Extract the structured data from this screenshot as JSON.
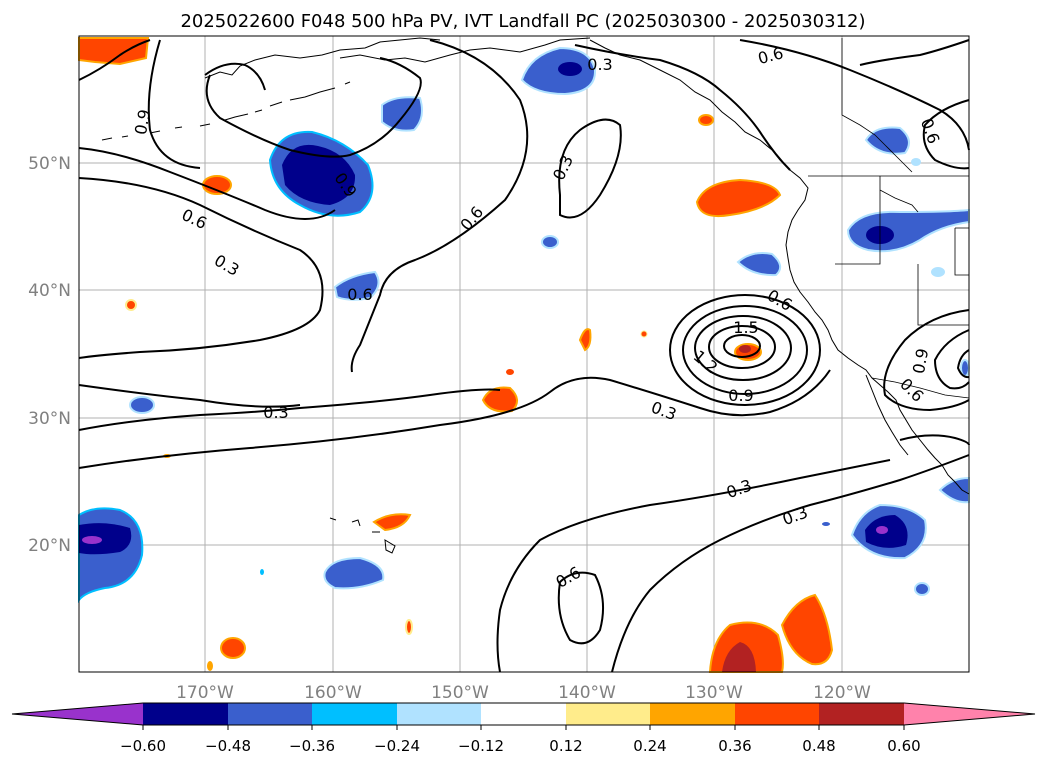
{
  "title": "2025022600 F048 500 hPa PV, IVT Landfall PC (2025030300 - 2025030312)",
  "axes": {
    "lat_labels": [
      "50°N",
      "40°N",
      "30°N",
      "20°N"
    ],
    "lon_labels": [
      "170°W",
      "160°W",
      "150°W",
      "140°W",
      "130°W",
      "120°W"
    ]
  },
  "colorbar": {
    "tick_labels": [
      "−0.60",
      "−0.48",
      "−0.36",
      "−0.24",
      "−0.12",
      "0.12",
      "0.24",
      "0.36",
      "0.48",
      "0.60"
    ],
    "colors": [
      "#9932CC",
      "#00008B",
      "#3A5FCD",
      "#00BFFF",
      "#B0E2FF",
      "#FFFFFF",
      "#FFEC8B",
      "#FFA500",
      "#FF4500",
      "#B22222",
      "#FF82AB"
    ]
  },
  "contour_labels": [
    "0.9",
    "0.3",
    "0.6",
    "0.3",
    "0.6",
    "0.9",
    "0.3",
    "0.6",
    "0.6",
    "0.3",
    "1.5",
    "0.6",
    "1.2",
    "0.9",
    "0.3",
    "0.9",
    "0.6",
    "0.3",
    "0.3",
    "0.6",
    "0.6"
  ],
  "colors": {
    "background": "#ffffff",
    "grid": "#b0b0b0",
    "contour": "#000000"
  }
}
